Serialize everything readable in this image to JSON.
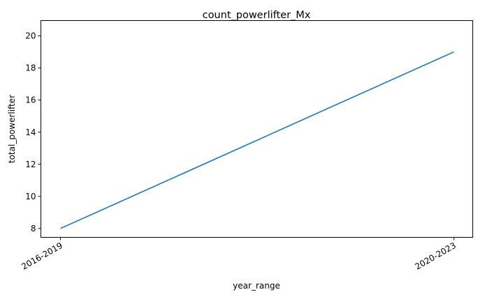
{
  "chart_data": {
    "type": "line",
    "title": "count_powerlifter_Mx",
    "xlabel": "year_range",
    "ylabel": "total_powerlifter",
    "categories": [
      "2016-2019",
      "2020-2023"
    ],
    "series": [
      {
        "values": [
          8,
          19
        ],
        "color": "#1f77b4"
      }
    ],
    "ylim": [
      7.45,
      20.95
    ],
    "yticks": [
      8,
      10,
      12,
      14,
      16,
      18,
      20
    ],
    "grid": false,
    "legend": "none"
  }
}
